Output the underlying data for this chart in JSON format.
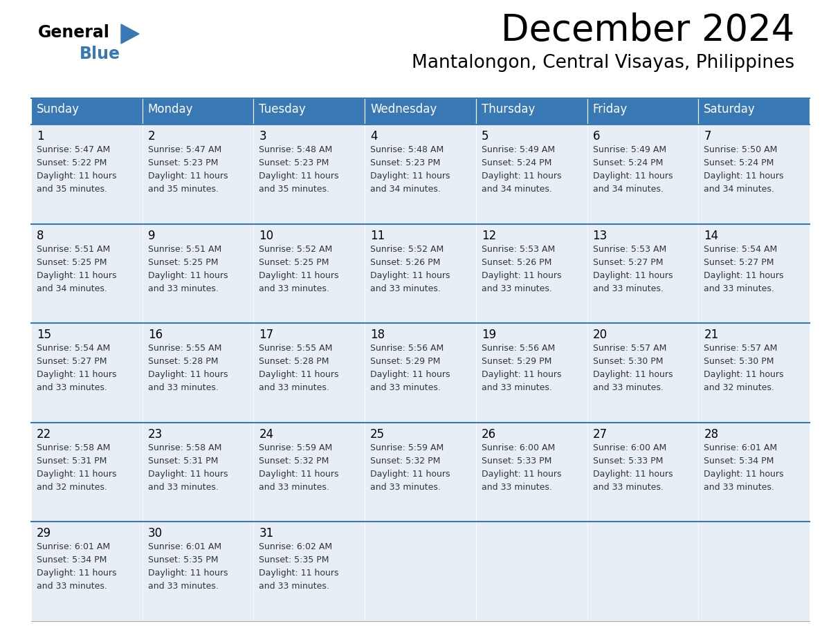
{
  "title": "December 2024",
  "subtitle": "Mantalongon, Central Visayas, Philippines",
  "header_color": "#3878b4",
  "header_text_color": "#ffffff",
  "cell_bg": "#e8eef5",
  "divider_color": "#3878b4",
  "text_color": "#333333",
  "days_of_week": [
    "Sunday",
    "Monday",
    "Tuesday",
    "Wednesday",
    "Thursday",
    "Friday",
    "Saturday"
  ],
  "weeks": [
    [
      {
        "day": 1,
        "sunrise": "5:47 AM",
        "sunset": "5:22 PM",
        "daylight_h": "11 hours",
        "daylight_m": "and 35 minutes."
      },
      {
        "day": 2,
        "sunrise": "5:47 AM",
        "sunset": "5:23 PM",
        "daylight_h": "11 hours",
        "daylight_m": "and 35 minutes."
      },
      {
        "day": 3,
        "sunrise": "5:48 AM",
        "sunset": "5:23 PM",
        "daylight_h": "11 hours",
        "daylight_m": "and 35 minutes."
      },
      {
        "day": 4,
        "sunrise": "5:48 AM",
        "sunset": "5:23 PM",
        "daylight_h": "11 hours",
        "daylight_m": "and 34 minutes."
      },
      {
        "day": 5,
        "sunrise": "5:49 AM",
        "sunset": "5:24 PM",
        "daylight_h": "11 hours",
        "daylight_m": "and 34 minutes."
      },
      {
        "day": 6,
        "sunrise": "5:49 AM",
        "sunset": "5:24 PM",
        "daylight_h": "11 hours",
        "daylight_m": "and 34 minutes."
      },
      {
        "day": 7,
        "sunrise": "5:50 AM",
        "sunset": "5:24 PM",
        "daylight_h": "11 hours",
        "daylight_m": "and 34 minutes."
      }
    ],
    [
      {
        "day": 8,
        "sunrise": "5:51 AM",
        "sunset": "5:25 PM",
        "daylight_h": "11 hours",
        "daylight_m": "and 34 minutes."
      },
      {
        "day": 9,
        "sunrise": "5:51 AM",
        "sunset": "5:25 PM",
        "daylight_h": "11 hours",
        "daylight_m": "and 33 minutes."
      },
      {
        "day": 10,
        "sunrise": "5:52 AM",
        "sunset": "5:25 PM",
        "daylight_h": "11 hours",
        "daylight_m": "and 33 minutes."
      },
      {
        "day": 11,
        "sunrise": "5:52 AM",
        "sunset": "5:26 PM",
        "daylight_h": "11 hours",
        "daylight_m": "and 33 minutes."
      },
      {
        "day": 12,
        "sunrise": "5:53 AM",
        "sunset": "5:26 PM",
        "daylight_h": "11 hours",
        "daylight_m": "and 33 minutes."
      },
      {
        "day": 13,
        "sunrise": "5:53 AM",
        "sunset": "5:27 PM",
        "daylight_h": "11 hours",
        "daylight_m": "and 33 minutes."
      },
      {
        "day": 14,
        "sunrise": "5:54 AM",
        "sunset": "5:27 PM",
        "daylight_h": "11 hours",
        "daylight_m": "and 33 minutes."
      }
    ],
    [
      {
        "day": 15,
        "sunrise": "5:54 AM",
        "sunset": "5:27 PM",
        "daylight_h": "11 hours",
        "daylight_m": "and 33 minutes."
      },
      {
        "day": 16,
        "sunrise": "5:55 AM",
        "sunset": "5:28 PM",
        "daylight_h": "11 hours",
        "daylight_m": "and 33 minutes."
      },
      {
        "day": 17,
        "sunrise": "5:55 AM",
        "sunset": "5:28 PM",
        "daylight_h": "11 hours",
        "daylight_m": "and 33 minutes."
      },
      {
        "day": 18,
        "sunrise": "5:56 AM",
        "sunset": "5:29 PM",
        "daylight_h": "11 hours",
        "daylight_m": "and 33 minutes."
      },
      {
        "day": 19,
        "sunrise": "5:56 AM",
        "sunset": "5:29 PM",
        "daylight_h": "11 hours",
        "daylight_m": "and 33 minutes."
      },
      {
        "day": 20,
        "sunrise": "5:57 AM",
        "sunset": "5:30 PM",
        "daylight_h": "11 hours",
        "daylight_m": "and 33 minutes."
      },
      {
        "day": 21,
        "sunrise": "5:57 AM",
        "sunset": "5:30 PM",
        "daylight_h": "11 hours",
        "daylight_m": "and 32 minutes."
      }
    ],
    [
      {
        "day": 22,
        "sunrise": "5:58 AM",
        "sunset": "5:31 PM",
        "daylight_h": "11 hours",
        "daylight_m": "and 32 minutes."
      },
      {
        "day": 23,
        "sunrise": "5:58 AM",
        "sunset": "5:31 PM",
        "daylight_h": "11 hours",
        "daylight_m": "and 33 minutes."
      },
      {
        "day": 24,
        "sunrise": "5:59 AM",
        "sunset": "5:32 PM",
        "daylight_h": "11 hours",
        "daylight_m": "and 33 minutes."
      },
      {
        "day": 25,
        "sunrise": "5:59 AM",
        "sunset": "5:32 PM",
        "daylight_h": "11 hours",
        "daylight_m": "and 33 minutes."
      },
      {
        "day": 26,
        "sunrise": "6:00 AM",
        "sunset": "5:33 PM",
        "daylight_h": "11 hours",
        "daylight_m": "and 33 minutes."
      },
      {
        "day": 27,
        "sunrise": "6:00 AM",
        "sunset": "5:33 PM",
        "daylight_h": "11 hours",
        "daylight_m": "and 33 minutes."
      },
      {
        "day": 28,
        "sunrise": "6:01 AM",
        "sunset": "5:34 PM",
        "daylight_h": "11 hours",
        "daylight_m": "and 33 minutes."
      }
    ],
    [
      {
        "day": 29,
        "sunrise": "6:01 AM",
        "sunset": "5:34 PM",
        "daylight_h": "11 hours",
        "daylight_m": "and 33 minutes."
      },
      {
        "day": 30,
        "sunrise": "6:01 AM",
        "sunset": "5:35 PM",
        "daylight_h": "11 hours",
        "daylight_m": "and 33 minutes."
      },
      {
        "day": 31,
        "sunrise": "6:02 AM",
        "sunset": "5:35 PM",
        "daylight_h": "11 hours",
        "daylight_m": "and 33 minutes."
      },
      null,
      null,
      null,
      null
    ]
  ],
  "fig_width": 11.88,
  "fig_height": 9.18,
  "dpi": 100
}
